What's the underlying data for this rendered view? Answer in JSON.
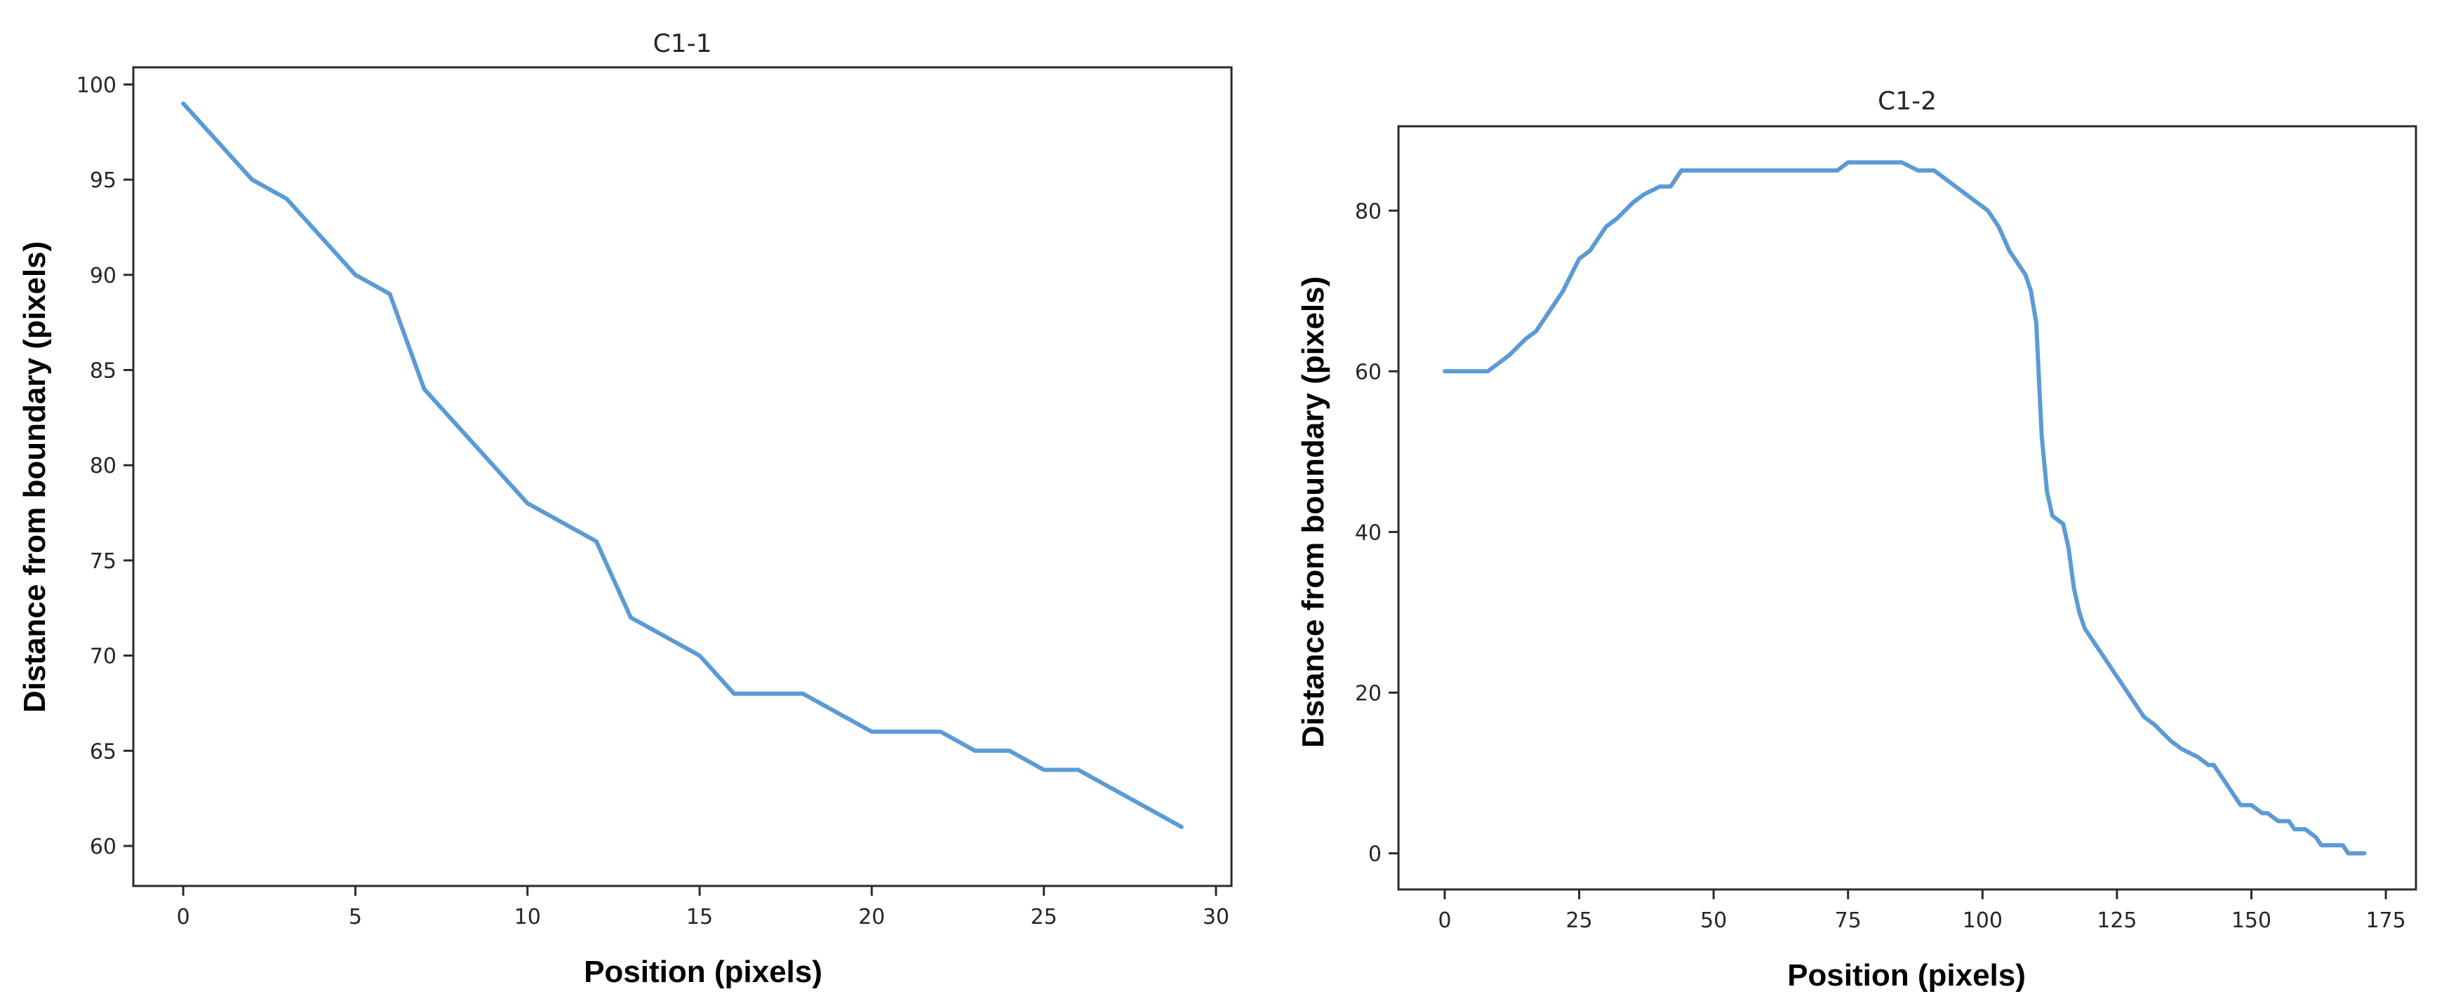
{
  "chart_data": [
    {
      "type": "line",
      "title": "C1-1",
      "xlabel": "Position (pixels)",
      "ylabel": "Distance from boundary (pixels)",
      "xlim": [
        -1.45,
        30.45
      ],
      "ylim": [
        57.9,
        100.9
      ],
      "xticks": [
        0,
        5,
        10,
        15,
        20,
        25,
        30
      ],
      "yticks": [
        60,
        65,
        70,
        75,
        80,
        85,
        90,
        95,
        100
      ],
      "grid": false,
      "color": "#5b9bd5",
      "series": [
        {
          "x": [
            0,
            1,
            2,
            3,
            4,
            5,
            6,
            7,
            8,
            9,
            10,
            11,
            12,
            13,
            14,
            15,
            16,
            17,
            18,
            19,
            20,
            21,
            22,
            23,
            24,
            25,
            26,
            27,
            28,
            29
          ],
          "y": [
            99,
            97,
            95,
            94,
            92,
            90,
            89,
            84,
            82,
            80,
            78,
            77,
            76,
            72,
            71,
            70,
            68,
            68,
            68,
            67,
            66,
            66,
            66,
            65,
            65,
            64,
            64,
            63,
            62,
            61
          ]
        }
      ]
    },
    {
      "type": "line",
      "title": "C1-2",
      "xlabel": "Position (pixels)",
      "ylabel": "Distance from boundary (pixels)",
      "xlim": [
        -8.6,
        180.6
      ],
      "ylim": [
        -4.5,
        90.5
      ],
      "xticks": [
        0,
        25,
        50,
        75,
        100,
        125,
        150,
        175
      ],
      "yticks": [
        0,
        20,
        40,
        60,
        80
      ],
      "grid": false,
      "color": "#5b9bd5",
      "series": [
        {
          "x": [
            0,
            8,
            10,
            12,
            15,
            17,
            20,
            22,
            25,
            27,
            30,
            32,
            35,
            37,
            40,
            42,
            44,
            50,
            60,
            70,
            73,
            75,
            80,
            85,
            88,
            91,
            93,
            95,
            97,
            99,
            101,
            103,
            105,
            106,
            107,
            108,
            109,
            110,
            111,
            112,
            113,
            115,
            116,
            117,
            118,
            119,
            120,
            121,
            125,
            128,
            130,
            132,
            135,
            137,
            140,
            142,
            143,
            144,
            145,
            146,
            147,
            148,
            150,
            152,
            153,
            155,
            157,
            158,
            160,
            162,
            163,
            165,
            166,
            167,
            168,
            170,
            171
          ],
          "y": [
            60,
            60,
            61,
            62,
            64,
            65,
            68,
            70,
            74,
            75,
            78,
            79,
            81,
            82,
            83,
            83,
            85,
            85,
            85,
            85,
            85,
            86,
            86,
            86,
            85,
            85,
            84,
            83,
            82,
            81,
            80,
            78,
            75,
            74,
            73,
            72,
            70,
            66,
            52,
            45,
            42,
            41,
            38,
            33,
            30,
            28,
            27,
            26,
            22,
            19,
            17,
            16,
            14,
            13,
            12,
            11,
            11,
            10,
            9,
            8,
            7,
            6,
            6,
            5,
            5,
            4,
            4,
            3,
            3,
            2,
            1,
            1,
            1,
            1,
            0,
            0,
            0
          ]
        }
      ]
    }
  ]
}
